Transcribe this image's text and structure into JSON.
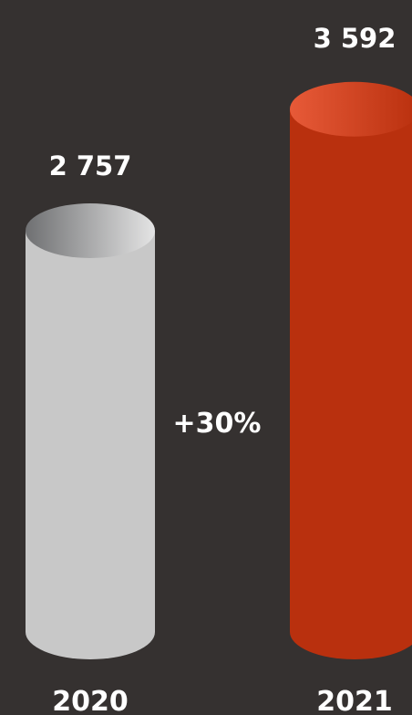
{
  "chart_data": {
    "type": "bar",
    "categories": [
      "2020",
      "2021"
    ],
    "values": [
      2757,
      3592
    ],
    "value_labels": [
      "2 757",
      "3 592"
    ],
    "change_label": "+30%",
    "colors": [
      "#c8c8c8",
      "#b9300e"
    ],
    "title": "",
    "xlabel": "",
    "ylabel": ""
  }
}
